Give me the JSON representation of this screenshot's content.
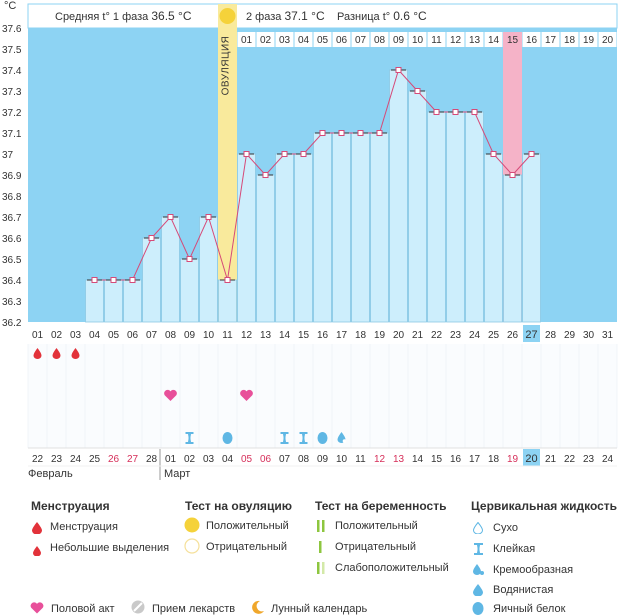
{
  "header": {
    "unit": "°C",
    "phase1_label": "Средняя t° 1 фаза",
    "phase1_value": "36.5 °C",
    "phase2_label": "2 фаза",
    "phase2_value": "37.1 °C",
    "diff_label": "Разница t°",
    "diff_value": "0.6 °C",
    "ovulation_label": "ОВУЛЯЦИЯ"
  },
  "colors": {
    "bg_blue": "#8dd3f3",
    "bar_fill": "#cdeefc",
    "bar_stroke": "#8cc8e4",
    "line": "#d64a78",
    "ovulation": "#f9ea9c",
    "ovulation_sun": "#f5d23a",
    "highlight_pink": "#f5b3c8",
    "header_bg": "#ffffff",
    "weekend": "#d62f5a",
    "today_bg": "#8dd3f3"
  },
  "chart_data": {
    "type": "bar",
    "title": "",
    "ylabel": "°C",
    "ylim": [
      36.2,
      37.6
    ],
    "yticks": [
      "37.6",
      "37.5",
      "37.4",
      "37.3",
      "37.2",
      "37.1",
      "37",
      "36.9",
      "36.8",
      "36.7",
      "36.6",
      "36.5",
      "36.4",
      "36.3",
      "36.2"
    ],
    "cycle_day_top": [
      "01",
      "02",
      "03",
      "04",
      "05",
      "06",
      "07",
      "08",
      "09",
      "10",
      "11",
      "12",
      "13",
      "14",
      "15",
      "16",
      "17",
      "18",
      "19",
      "20"
    ],
    "cycle_day_bottom": [
      "01",
      "02",
      "03",
      "04",
      "05",
      "06",
      "07",
      "08",
      "09",
      "10",
      "11",
      "12",
      "13",
      "14",
      "15",
      "16",
      "17",
      "18",
      "19",
      "20",
      "21",
      "22",
      "23",
      "24",
      "25",
      "26",
      "27",
      "28",
      "29",
      "30",
      "31"
    ],
    "values": [
      null,
      null,
      null,
      36.4,
      36.4,
      36.4,
      36.6,
      36.7,
      36.5,
      36.7,
      36.4,
      37.0,
      36.9,
      37.0,
      37.0,
      37.1,
      37.1,
      37.1,
      37.1,
      37.4,
      37.3,
      37.2,
      37.2,
      37.2,
      37.0,
      36.9,
      37.0,
      null,
      null,
      null,
      null
    ],
    "ovulation_day_index": 10,
    "highlight_day_index": 25,
    "today_index": 26
  },
  "symbols": {
    "menstruation": [
      0,
      1,
      2
    ],
    "intercourse": [
      7,
      11
    ],
    "cervical_sticky": [
      8,
      13,
      14
    ],
    "cervical_watery": [
      16
    ],
    "cervical_eggwhite": [
      10,
      15
    ],
    "cervical_creamy": []
  },
  "dates": {
    "days": [
      "22",
      "23",
      "24",
      "25",
      "26",
      "27",
      "28",
      "01",
      "02",
      "03",
      "04",
      "05",
      "06",
      "07",
      "08",
      "09",
      "10",
      "11",
      "12",
      "13",
      "14",
      "15",
      "16",
      "17",
      "18",
      "19",
      "20",
      "21",
      "22",
      "23",
      "24"
    ],
    "weekend_indices": [
      4,
      5,
      11,
      12,
      18,
      19,
      25
    ],
    "month1": "Февраль",
    "month2": "Март"
  },
  "legend": {
    "menstruation": {
      "title": "Менструация",
      "items": [
        "Менструация",
        "Небольшие выделения"
      ]
    },
    "ovulation_test": {
      "title": "Тест на овуляцию",
      "items": [
        "Положительный",
        "Отрицательный"
      ]
    },
    "pregnancy_test": {
      "title": "Тест на беременность",
      "items": [
        "Положительный",
        "Отрицательный",
        "Слабоположительный"
      ]
    },
    "cervical": {
      "title": "Цервикальная жидкость",
      "items": [
        "Сухо",
        "Клейкая",
        "Кремообразная",
        "Водянистая",
        "Яичный белок"
      ]
    },
    "bottom": [
      "Половой акт",
      "Прием лекарств",
      "Лунный календарь"
    ]
  }
}
